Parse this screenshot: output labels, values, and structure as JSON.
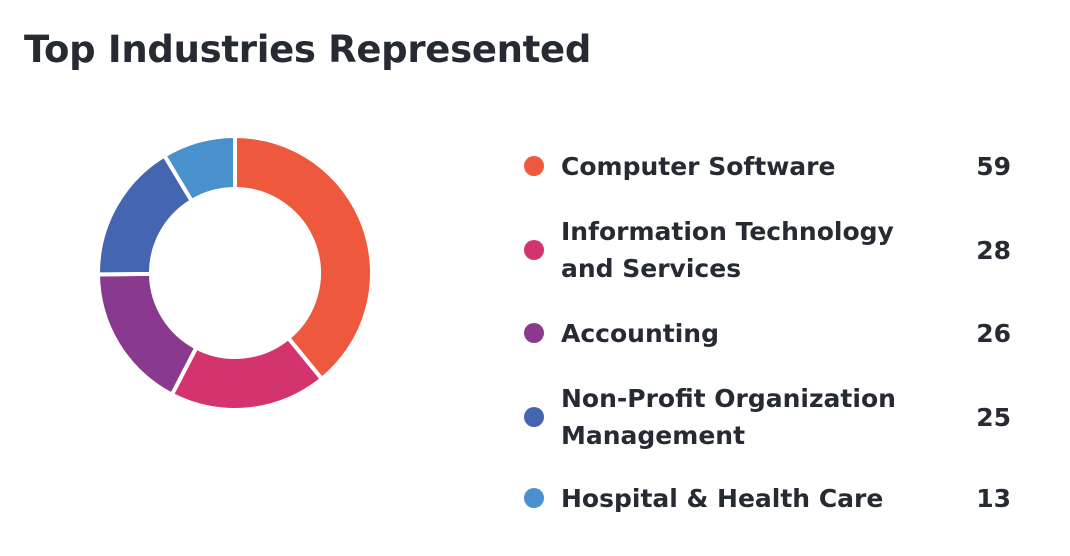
{
  "chart_data": {
    "type": "pie",
    "title": "Top Industries Represented",
    "legend_position": "right",
    "categories": [
      "Computer Software",
      "Information Technology and Services",
      "Accounting",
      "Non-Profit Organization Management",
      "Hospital & Health Care"
    ],
    "values": [
      59,
      28,
      26,
      25,
      13
    ],
    "colors": [
      "#ee583c",
      "#d5336d",
      "#8a3a8e",
      "#4466b0",
      "#4891cc"
    ]
  }
}
